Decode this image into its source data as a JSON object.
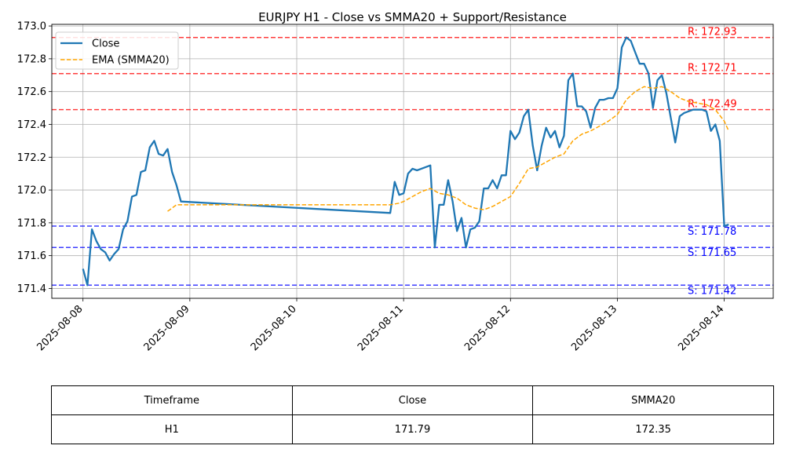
{
  "chart_data": {
    "type": "line",
    "title": "EURJPY H1 - Close vs SMMA20 + Support/Resistance",
    "xlabel": "",
    "ylabel": "",
    "x_ticks": [
      "2025-08-08",
      "2025-08-09",
      "2025-08-10",
      "2025-08-11",
      "2025-08-12",
      "2025-08-13",
      "2025-08-14"
    ],
    "y_ticks": [
      "171.4",
      "171.6",
      "171.8",
      "172.0",
      "172.2",
      "172.4",
      "172.6",
      "172.8",
      "173.0"
    ],
    "x_range": [
      "2025-08-07T17:00",
      "2025-08-14T11:00"
    ],
    "ylim": [
      171.34,
      173.01
    ],
    "grid": true,
    "legend_position": "top-left",
    "series": [
      {
        "name": "Close",
        "color": "#1f77b4",
        "style": "solid",
        "points": [
          [
            "2025-08-08T00:00",
            171.52
          ],
          [
            "2025-08-08T01:00",
            171.42
          ],
          [
            "2025-08-08T02:00",
            171.76
          ],
          [
            "2025-08-08T03:00",
            171.69
          ],
          [
            "2025-08-08T04:00",
            171.64
          ],
          [
            "2025-08-08T05:00",
            171.62
          ],
          [
            "2025-08-08T06:00",
            171.57
          ],
          [
            "2025-08-08T07:00",
            171.61
          ],
          [
            "2025-08-08T08:00",
            171.64
          ],
          [
            "2025-08-08T09:00",
            171.76
          ],
          [
            "2025-08-08T10:00",
            171.81
          ],
          [
            "2025-08-08T11:00",
            171.96
          ],
          [
            "2025-08-08T12:00",
            171.97
          ],
          [
            "2025-08-08T13:00",
            172.11
          ],
          [
            "2025-08-08T14:00",
            172.12
          ],
          [
            "2025-08-08T15:00",
            172.26
          ],
          [
            "2025-08-08T16:00",
            172.3
          ],
          [
            "2025-08-08T17:00",
            172.22
          ],
          [
            "2025-08-08T18:00",
            172.21
          ],
          [
            "2025-08-08T19:00",
            172.25
          ],
          [
            "2025-08-08T20:00",
            172.11
          ],
          [
            "2025-08-08T21:00",
            172.03
          ],
          [
            "2025-08-08T22:00",
            171.93
          ],
          [
            "2025-08-10T21:00",
            171.86
          ],
          [
            "2025-08-10T22:00",
            172.05
          ],
          [
            "2025-08-10T23:00",
            171.97
          ],
          [
            "2025-08-11T00:00",
            171.98
          ],
          [
            "2025-08-11T01:00",
            172.1
          ],
          [
            "2025-08-11T02:00",
            172.13
          ],
          [
            "2025-08-11T03:00",
            172.12
          ],
          [
            "2025-08-11T04:00",
            172.13
          ],
          [
            "2025-08-11T05:00",
            172.14
          ],
          [
            "2025-08-11T06:00",
            172.15
          ],
          [
            "2025-08-11T07:00",
            171.65
          ],
          [
            "2025-08-11T08:00",
            171.91
          ],
          [
            "2025-08-11T09:00",
            171.91
          ],
          [
            "2025-08-11T10:00",
            172.06
          ],
          [
            "2025-08-11T11:00",
            171.93
          ],
          [
            "2025-08-11T12:00",
            171.75
          ],
          [
            "2025-08-11T13:00",
            171.83
          ],
          [
            "2025-08-11T14:00",
            171.65
          ],
          [
            "2025-08-11T15:00",
            171.76
          ],
          [
            "2025-08-11T16:00",
            171.77
          ],
          [
            "2025-08-11T17:00",
            171.81
          ],
          [
            "2025-08-11T18:00",
            172.01
          ],
          [
            "2025-08-11T19:00",
            172.01
          ],
          [
            "2025-08-11T20:00",
            172.06
          ],
          [
            "2025-08-11T21:00",
            172.01
          ],
          [
            "2025-08-11T22:00",
            172.09
          ],
          [
            "2025-08-11T23:00",
            172.09
          ],
          [
            "2025-08-12T00:00",
            172.36
          ],
          [
            "2025-08-12T01:00",
            172.31
          ],
          [
            "2025-08-12T02:00",
            172.35
          ],
          [
            "2025-08-12T03:00",
            172.45
          ],
          [
            "2025-08-12T04:00",
            172.49
          ],
          [
            "2025-08-12T05:00",
            172.27
          ],
          [
            "2025-08-12T06:00",
            172.12
          ],
          [
            "2025-08-12T07:00",
            172.27
          ],
          [
            "2025-08-12T08:00",
            172.38
          ],
          [
            "2025-08-12T09:00",
            172.32
          ],
          [
            "2025-08-12T10:00",
            172.36
          ],
          [
            "2025-08-12T11:00",
            172.26
          ],
          [
            "2025-08-12T12:00",
            172.33
          ],
          [
            "2025-08-12T13:00",
            172.67
          ],
          [
            "2025-08-12T14:00",
            172.71
          ],
          [
            "2025-08-12T15:00",
            172.51
          ],
          [
            "2025-08-12T16:00",
            172.51
          ],
          [
            "2025-08-12T17:00",
            172.48
          ],
          [
            "2025-08-12T18:00",
            172.38
          ],
          [
            "2025-08-12T19:00",
            172.5
          ],
          [
            "2025-08-12T20:00",
            172.55
          ],
          [
            "2025-08-12T21:00",
            172.55
          ],
          [
            "2025-08-12T22:00",
            172.56
          ],
          [
            "2025-08-12T23:00",
            172.56
          ],
          [
            "2025-08-13T00:00",
            172.62
          ],
          [
            "2025-08-13T01:00",
            172.87
          ],
          [
            "2025-08-13T02:00",
            172.93
          ],
          [
            "2025-08-13T03:00",
            172.91
          ],
          [
            "2025-08-13T04:00",
            172.84
          ],
          [
            "2025-08-13T05:00",
            172.77
          ],
          [
            "2025-08-13T06:00",
            172.77
          ],
          [
            "2025-08-13T07:00",
            172.71
          ],
          [
            "2025-08-13T08:00",
            172.5
          ],
          [
            "2025-08-13T09:00",
            172.67
          ],
          [
            "2025-08-13T10:00",
            172.7
          ],
          [
            "2025-08-13T11:00",
            172.59
          ],
          [
            "2025-08-13T12:00",
            172.44
          ],
          [
            "2025-08-13T13:00",
            172.29
          ],
          [
            "2025-08-13T14:00",
            172.45
          ],
          [
            "2025-08-13T15:00",
            172.47
          ],
          [
            "2025-08-13T16:00",
            172.48
          ],
          [
            "2025-08-13T17:00",
            172.49
          ],
          [
            "2025-08-13T18:00",
            172.49
          ],
          [
            "2025-08-13T19:00",
            172.49
          ],
          [
            "2025-08-13T20:00",
            172.48
          ],
          [
            "2025-08-13T21:00",
            172.36
          ],
          [
            "2025-08-13T22:00",
            172.4
          ],
          [
            "2025-08-13T23:00",
            172.3
          ],
          [
            "2025-08-14T00:00",
            171.78
          ],
          [
            "2025-08-14T01:00",
            171.79
          ]
        ]
      },
      {
        "name": "EMA (SMMA20)",
        "color": "#ffa500",
        "style": "dashed",
        "points": [
          [
            "2025-08-08T19:00",
            171.87
          ],
          [
            "2025-08-08T20:00",
            171.89
          ],
          [
            "2025-08-08T21:00",
            171.91
          ],
          [
            "2025-08-08T22:00",
            171.91
          ],
          [
            "2025-08-10T21:00",
            171.91
          ],
          [
            "2025-08-10T23:00",
            171.92
          ],
          [
            "2025-08-11T00:00",
            171.93
          ],
          [
            "2025-08-11T02:00",
            171.96
          ],
          [
            "2025-08-11T04:00",
            171.99
          ],
          [
            "2025-08-11T06:00",
            172.01
          ],
          [
            "2025-08-11T08:00",
            171.98
          ],
          [
            "2025-08-11T10:00",
            171.97
          ],
          [
            "2025-08-11T12:00",
            171.95
          ],
          [
            "2025-08-11T14:00",
            171.91
          ],
          [
            "2025-08-11T16:00",
            171.89
          ],
          [
            "2025-08-11T18:00",
            171.88
          ],
          [
            "2025-08-11T20:00",
            171.9
          ],
          [
            "2025-08-11T22:00",
            171.93
          ],
          [
            "2025-08-12T00:00",
            171.96
          ],
          [
            "2025-08-12T02:00",
            172.04
          ],
          [
            "2025-08-12T04:00",
            172.13
          ],
          [
            "2025-08-12T06:00",
            172.14
          ],
          [
            "2025-08-12T08:00",
            172.17
          ],
          [
            "2025-08-12T10:00",
            172.2
          ],
          [
            "2025-08-12T12:00",
            172.22
          ],
          [
            "2025-08-12T14:00",
            172.3
          ],
          [
            "2025-08-12T16:00",
            172.34
          ],
          [
            "2025-08-12T18:00",
            172.36
          ],
          [
            "2025-08-12T20:00",
            172.39
          ],
          [
            "2025-08-12T22:00",
            172.42
          ],
          [
            "2025-08-13T00:00",
            172.46
          ],
          [
            "2025-08-13T02:00",
            172.55
          ],
          [
            "2025-08-13T04:00",
            172.6
          ],
          [
            "2025-08-13T06:00",
            172.63
          ],
          [
            "2025-08-13T08:00",
            172.62
          ],
          [
            "2025-08-13T10:00",
            172.63
          ],
          [
            "2025-08-13T12:00",
            172.6
          ],
          [
            "2025-08-13T14:00",
            172.56
          ],
          [
            "2025-08-13T16:00",
            172.54
          ],
          [
            "2025-08-13T18:00",
            172.53
          ],
          [
            "2025-08-13T20:00",
            172.52
          ],
          [
            "2025-08-13T22:00",
            172.49
          ],
          [
            "2025-08-14T00:00",
            172.42
          ],
          [
            "2025-08-14T01:00",
            172.36
          ]
        ]
      }
    ],
    "levels": [
      {
        "kind": "resistance",
        "value": 172.93,
        "label": "R: 172.93",
        "color": "#ff0000"
      },
      {
        "kind": "resistance",
        "value": 172.71,
        "label": "R: 172.71",
        "color": "#ff0000"
      },
      {
        "kind": "resistance",
        "value": 172.49,
        "label": "R: 172.49",
        "color": "#ff0000"
      },
      {
        "kind": "support",
        "value": 171.78,
        "label": "S: 171.78",
        "color": "#0000ff"
      },
      {
        "kind": "support",
        "value": 171.65,
        "label": "S: 171.65",
        "color": "#0000ff"
      },
      {
        "kind": "support",
        "value": 171.42,
        "label": "S: 171.42",
        "color": "#0000ff"
      }
    ]
  },
  "table": {
    "headers": [
      "Timeframe",
      "Close",
      "SMMA20"
    ],
    "row": [
      "H1",
      "171.79",
      "172.35"
    ]
  }
}
